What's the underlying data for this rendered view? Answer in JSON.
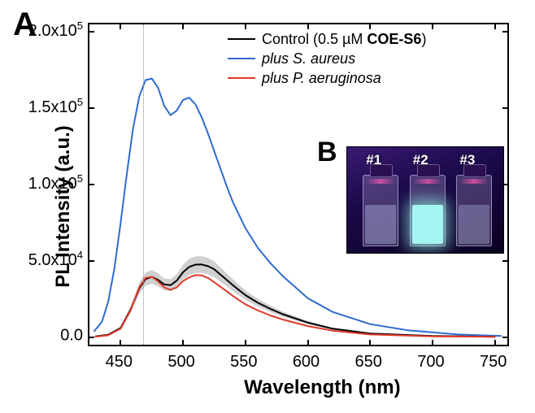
{
  "panelA": {
    "label": "A",
    "type": "line",
    "x_range": [
      425,
      760
    ],
    "y_range": [
      -5000,
      205000
    ],
    "xticks": [
      450,
      500,
      550,
      600,
      650,
      700,
      750
    ],
    "yticks": [
      0,
      50000,
      100000,
      150000,
      200000
    ],
    "ytick_labels": [
      "0.0",
      "5.0x10",
      "1.0x10",
      "1.5x10",
      "2.0x10"
    ],
    "ytick_exps": [
      "",
      "4",
      "5",
      "5",
      "5"
    ],
    "xlabel": "Wavelength (nm)",
    "ylabel": "PL Intensity (a.u.)",
    "guide_x": 468,
    "background_color": "#ffffff",
    "axis_color": "#000000",
    "tick_fontsize": 20,
    "label_fontsize": 24,
    "series": [
      {
        "name": "control",
        "legend_html": "Control (0.5 µM <b>COE-S6</b>)",
        "color": "#000000",
        "shade_color": "rgba(120,120,120,0.35)",
        "width": 2,
        "x": [
          430,
          440,
          450,
          458,
          465,
          470,
          475,
          480,
          485,
          490,
          495,
          500,
          505,
          510,
          515,
          520,
          525,
          530,
          535,
          540,
          550,
          560,
          570,
          580,
          600,
          620,
          650,
          700,
          750
        ],
        "y": [
          500,
          1500,
          6000,
          18000,
          32000,
          38000,
          39500,
          37500,
          34500,
          34000,
          37000,
          42500,
          46000,
          47500,
          47600,
          46500,
          44500,
          41000,
          37500,
          34000,
          27500,
          22500,
          18500,
          15000,
          9500,
          5500,
          2300,
          700,
          200
        ]
      },
      {
        "name": "s_aureus",
        "legend_html": "<em>plus S. aureus</em>",
        "color": "#2d6bd1",
        "width": 2,
        "x": [
          429,
          435,
          440,
          445,
          450,
          455,
          460,
          465,
          470,
          475,
          480,
          485,
          490,
          495,
          500,
          505,
          510,
          515,
          520,
          525,
          530,
          535,
          540,
          550,
          560,
          570,
          580,
          600,
          620,
          650,
          680,
          720,
          755
        ],
        "y": [
          4000,
          10000,
          23000,
          45000,
          75000,
          107000,
          137000,
          158000,
          168500,
          169500,
          163500,
          151500,
          145500,
          148500,
          155500,
          157000,
          152500,
          144000,
          133500,
          122000,
          110500,
          99000,
          88500,
          71500,
          58500,
          48500,
          40000,
          25500,
          16500,
          8500,
          4500,
          1700,
          700
        ]
      },
      {
        "name": "p_aeruginosa",
        "legend_html": "<em>plus P. aeruginosa</em>",
        "color": "#e03a2a",
        "width": 2,
        "x": [
          430,
          440,
          450,
          458,
          465,
          470,
          475,
          480,
          485,
          490,
          495,
          500,
          505,
          510,
          515,
          520,
          525,
          530,
          535,
          540,
          550,
          560,
          570,
          580,
          600,
          620,
          650,
          700,
          750
        ],
        "y": [
          300,
          1200,
          5500,
          17500,
          32800,
          38800,
          39500,
          36500,
          32500,
          31000,
          32500,
          36700,
          39200,
          40600,
          40400,
          38800,
          36000,
          33000,
          30000,
          27000,
          21500,
          17500,
          14200,
          11500,
          7200,
          4200,
          1700,
          500,
          150
        ]
      }
    ]
  },
  "panelB": {
    "label": "B",
    "type": "photo-inset",
    "background_gradient": [
      "#3a1a72",
      "#120535"
    ],
    "cuvettes": [
      {
        "label": "#1",
        "left_pct": 10,
        "liquid_color": "rgba(200,210,255,0.35)",
        "glow": "none"
      },
      {
        "label": "#2",
        "left_pct": 40,
        "liquid_color": "rgba(170,255,250,0.95)",
        "glow": "0 0 18px 6px rgba(150,255,235,0.65)"
      },
      {
        "label": "#3",
        "left_pct": 70,
        "liquid_color": "rgba(200,210,255,0.30)",
        "glow": "none"
      }
    ],
    "label_color": "#ffffff",
    "label_fontsize": 17
  }
}
